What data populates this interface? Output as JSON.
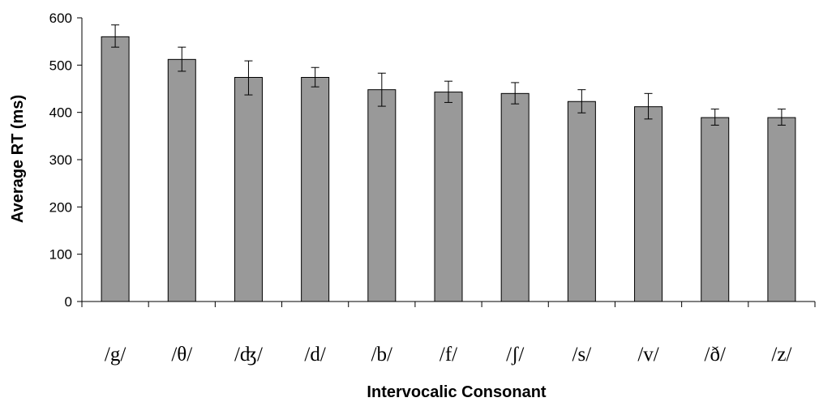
{
  "chart_data": {
    "type": "bar",
    "title": "",
    "xlabel": "Intervocalic Consonant",
    "ylabel": "Average RT (ms)",
    "categories": [
      "/g/",
      "/θ/",
      "/ʤ/",
      "/d/",
      "/b/",
      "/f/",
      "/ʃ/",
      "/s/",
      "/v/",
      "/ð/",
      "/z/"
    ],
    "values": [
      560,
      512,
      474,
      474,
      448,
      443,
      440,
      423,
      412,
      389,
      389
    ],
    "error_upper": [
      25,
      26,
      35,
      21,
      35,
      23,
      23,
      25,
      28,
      18,
      18
    ],
    "error_lower": [
      22,
      25,
      37,
      20,
      35,
      22,
      22,
      24,
      26,
      16,
      16
    ],
    "yticks": [
      0,
      100,
      200,
      300,
      400,
      500,
      600
    ],
    "ylim": [
      0,
      600
    ],
    "bar_color": "#999999",
    "bar_edge_color": "#000000",
    "grid": false,
    "legend": "none"
  }
}
